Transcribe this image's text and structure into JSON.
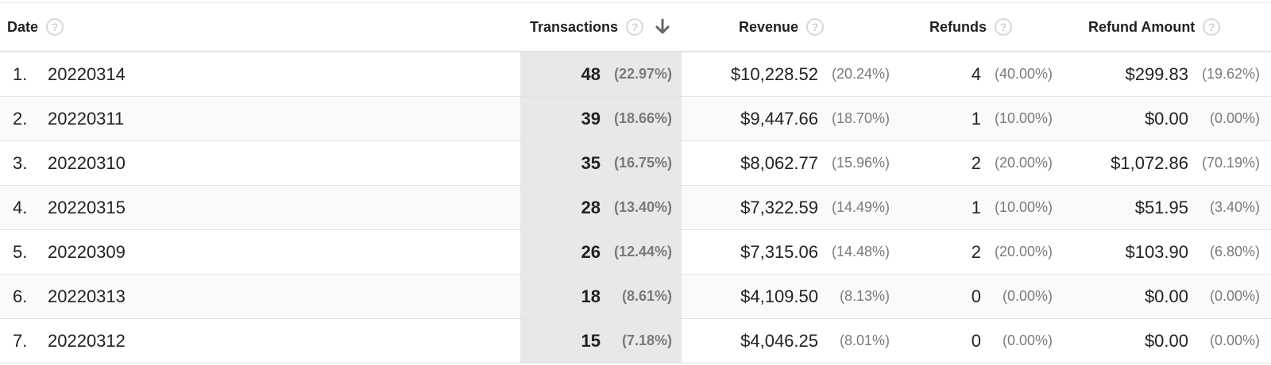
{
  "header": {
    "date": "Date",
    "transactions": "Transactions",
    "revenue": "Revenue",
    "refunds": "Refunds",
    "refund_amount": "Refund Amount",
    "help_glyph": "?",
    "sort_direction": "descending"
  },
  "rows": [
    {
      "index": "1.",
      "date": "20220314",
      "transactions": "48",
      "transactions_pct": "(22.97%)",
      "revenue": "$10,228.52",
      "revenue_pct": "(20.24%)",
      "refunds": "4",
      "refunds_pct": "(40.00%)",
      "refund_amount": "$299.83",
      "refund_amount_pct": "(19.62%)"
    },
    {
      "index": "2.",
      "date": "20220311",
      "transactions": "39",
      "transactions_pct": "(18.66%)",
      "revenue": "$9,447.66",
      "revenue_pct": "(18.70%)",
      "refunds": "1",
      "refunds_pct": "(10.00%)",
      "refund_amount": "$0.00",
      "refund_amount_pct": "(0.00%)"
    },
    {
      "index": "3.",
      "date": "20220310",
      "transactions": "35",
      "transactions_pct": "(16.75%)",
      "revenue": "$8,062.77",
      "revenue_pct": "(15.96%)",
      "refunds": "2",
      "refunds_pct": "(20.00%)",
      "refund_amount": "$1,072.86",
      "refund_amount_pct": "(70.19%)"
    },
    {
      "index": "4.",
      "date": "20220315",
      "transactions": "28",
      "transactions_pct": "(13.40%)",
      "revenue": "$7,322.59",
      "revenue_pct": "(14.49%)",
      "refunds": "1",
      "refunds_pct": "(10.00%)",
      "refund_amount": "$51.95",
      "refund_amount_pct": "(3.40%)"
    },
    {
      "index": "5.",
      "date": "20220309",
      "transactions": "26",
      "transactions_pct": "(12.44%)",
      "revenue": "$7,315.06",
      "revenue_pct": "(14.48%)",
      "refunds": "2",
      "refunds_pct": "(20.00%)",
      "refund_amount": "$103.90",
      "refund_amount_pct": "(6.80%)"
    },
    {
      "index": "6.",
      "date": "20220313",
      "transactions": "18",
      "transactions_pct": "(8.61%)",
      "revenue": "$4,109.50",
      "revenue_pct": "(8.13%)",
      "refunds": "0",
      "refunds_pct": "(0.00%)",
      "refund_amount": "$0.00",
      "refund_amount_pct": "(0.00%)"
    },
    {
      "index": "7.",
      "date": "20220312",
      "transactions": "15",
      "transactions_pct": "(7.18%)",
      "revenue": "$4,046.25",
      "revenue_pct": "(8.01%)",
      "refunds": "0",
      "refunds_pct": "(0.00%)",
      "refund_amount": "$0.00",
      "refund_amount_pct": "(0.00%)"
    }
  ],
  "icons": {
    "help": "help-circle-icon",
    "sort": "arrow-down-icon"
  },
  "colors": {
    "sorted_column_bg": "#e8e8e8",
    "muted_text": "#7a7a7a",
    "help_icon": "#d8d8d8"
  }
}
